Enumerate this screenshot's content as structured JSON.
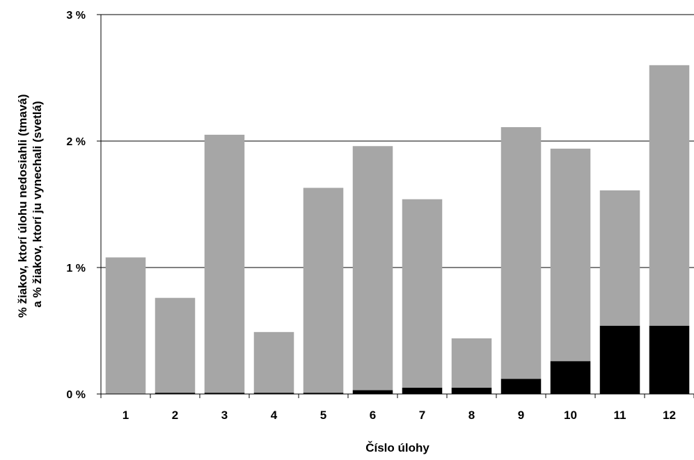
{
  "chart_data": {
    "type": "bar",
    "stacked": true,
    "title": "",
    "xlabel": "Číslo úlohy",
    "ylabel_lines": [
      "% žiakov, ktorí úlohu nedosiahli (tmavá)",
      "a % žiakov, ktorí ju vynechali  (svetlá)"
    ],
    "categories": [
      "1",
      "2",
      "3",
      "4",
      "5",
      "6",
      "7",
      "8",
      "9",
      "10",
      "11",
      "12"
    ],
    "series": [
      {
        "key": "dark",
        "color": "#000000",
        "values": [
          0,
          0.01,
          0.01,
          0.01,
          0.01,
          0.03,
          0.05,
          0.05,
          0.12,
          0.26,
          0.54,
          0.54
        ]
      },
      {
        "key": "light",
        "color": "#a6a6a6",
        "values": [
          1.08,
          0.75,
          2.04,
          0.48,
          1.62,
          1.93,
          1.49,
          0.39,
          1.99,
          1.68,
          1.07,
          2.06
        ]
      }
    ],
    "ylim": [
      0,
      3
    ],
    "yticks": [
      0,
      1,
      2,
      3
    ],
    "ytick_labels": [
      "0 %",
      "1 %",
      "2 %",
      "3 %"
    ],
    "grid": true,
    "legend": "none"
  }
}
